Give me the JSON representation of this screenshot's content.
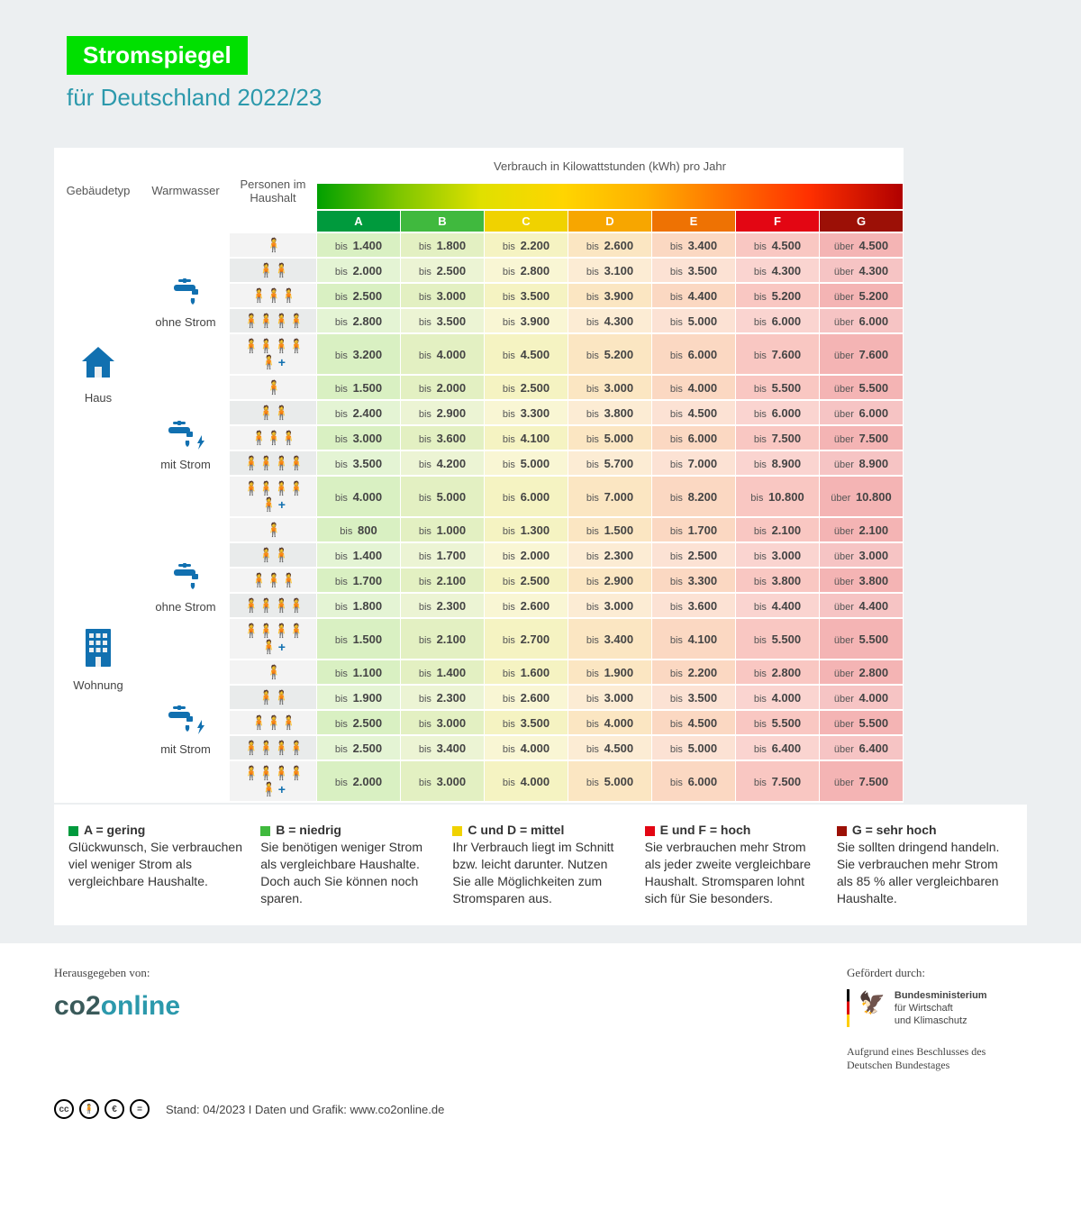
{
  "title": "Stromspiegel",
  "subtitle": "für Deutschland 2022/23",
  "tableHeader": {
    "gebaeude": "Gebäudetyp",
    "warmwasser": "Warmwasser",
    "personen": "Personen im Haushalt",
    "verbrauch": "Verbrauch in Kilowattstunden (kWh) pro Jahr"
  },
  "categories": [
    "A",
    "B",
    "C",
    "D",
    "E",
    "F",
    "G"
  ],
  "catColors": [
    "#009a3d",
    "#40b93e",
    "#f0d200",
    "#f7a600",
    "#ee7203",
    "#e30613",
    "#9c1006"
  ],
  "prefixes": {
    "bis": "bis",
    "ueber": "über"
  },
  "buildings": [
    {
      "type": "Haus",
      "groups": [
        {
          "ww": "ohne Strom",
          "icon": "faucet",
          "rows": [
            {
              "p": 1,
              "v": [
                "1.400",
                "1.800",
                "2.200",
                "2.600",
                "3.400",
                "4.500",
                "4.500"
              ]
            },
            {
              "p": 2,
              "v": [
                "2.000",
                "2.500",
                "2.800",
                "3.100",
                "3.500",
                "4.300",
                "4.300"
              ]
            },
            {
              "p": 3,
              "v": [
                "2.500",
                "3.000",
                "3.500",
                "3.900",
                "4.400",
                "5.200",
                "5.200"
              ]
            },
            {
              "p": 4,
              "v": [
                "2.800",
                "3.500",
                "3.900",
                "4.300",
                "5.000",
                "6.000",
                "6.000"
              ]
            },
            {
              "p": 5,
              "v": [
                "3.200",
                "4.000",
                "4.500",
                "5.200",
                "6.000",
                "7.600",
                "7.600"
              ]
            }
          ]
        },
        {
          "ww": "mit Strom",
          "icon": "faucet-bolt",
          "rows": [
            {
              "p": 1,
              "v": [
                "1.500",
                "2.000",
                "2.500",
                "3.000",
                "4.000",
                "5.500",
                "5.500"
              ]
            },
            {
              "p": 2,
              "v": [
                "2.400",
                "2.900",
                "3.300",
                "3.800",
                "4.500",
                "6.000",
                "6.000"
              ]
            },
            {
              "p": 3,
              "v": [
                "3.000",
                "3.600",
                "4.100",
                "5.000",
                "6.000",
                "7.500",
                "7.500"
              ]
            },
            {
              "p": 4,
              "v": [
                "3.500",
                "4.200",
                "5.000",
                "5.700",
                "7.000",
                "8.900",
                "8.900"
              ]
            },
            {
              "p": 5,
              "v": [
                "4.000",
                "5.000",
                "6.000",
                "7.000",
                "8.200",
                "10.800",
                "10.800"
              ]
            }
          ]
        }
      ]
    },
    {
      "type": "Wohnung",
      "groups": [
        {
          "ww": "ohne Strom",
          "icon": "faucet",
          "rows": [
            {
              "p": 1,
              "v": [
                "800",
                "1.000",
                "1.300",
                "1.500",
                "1.700",
                "2.100",
                "2.100"
              ]
            },
            {
              "p": 2,
              "v": [
                "1.400",
                "1.700",
                "2.000",
                "2.300",
                "2.500",
                "3.000",
                "3.000"
              ]
            },
            {
              "p": 3,
              "v": [
                "1.700",
                "2.100",
                "2.500",
                "2.900",
                "3.300",
                "3.800",
                "3.800"
              ]
            },
            {
              "p": 4,
              "v": [
                "1.800",
                "2.300",
                "2.600",
                "3.000",
                "3.600",
                "4.400",
                "4.400"
              ]
            },
            {
              "p": 5,
              "v": [
                "1.500",
                "2.100",
                "2.700",
                "3.400",
                "4.100",
                "5.500",
                "5.500"
              ]
            }
          ]
        },
        {
          "ww": "mit Strom",
          "icon": "faucet-bolt",
          "rows": [
            {
              "p": 1,
              "v": [
                "1.100",
                "1.400",
                "1.600",
                "1.900",
                "2.200",
                "2.800",
                "2.800"
              ]
            },
            {
              "p": 2,
              "v": [
                "1.900",
                "2.300",
                "2.600",
                "3.000",
                "3.500",
                "4.000",
                "4.000"
              ]
            },
            {
              "p": 3,
              "v": [
                "2.500",
                "3.000",
                "3.500",
                "4.000",
                "4.500",
                "5.500",
                "5.500"
              ]
            },
            {
              "p": 4,
              "v": [
                "2.500",
                "3.400",
                "4.000",
                "4.500",
                "5.000",
                "6.400",
                "6.400"
              ]
            },
            {
              "p": 5,
              "v": [
                "2.000",
                "3.000",
                "4.000",
                "5.000",
                "6.000",
                "7.500",
                "7.500"
              ]
            }
          ]
        }
      ]
    }
  ],
  "legend": [
    {
      "sq": "#009a3d",
      "t": "A = gering",
      "d": "Glückwunsch, Sie ver­brauchen viel weniger Strom als vergleichbare Haushalte."
    },
    {
      "sq": "#40b93e",
      "t": "B = niedrig",
      "d": "Sie benötigen weniger Strom als vergleichbare Haushalte. Doch auch Sie können noch sparen."
    },
    {
      "sq": "#f0d200",
      "t": "C und D = mittel",
      "d": "Ihr Verbrauch liegt im Schnitt bzw. leicht darunter. Nutzen Sie alle Möglichkeiten zum Stromsparen aus."
    },
    {
      "sq": "#e30613",
      "t": "E und F = hoch",
      "d": "Sie verbrauchen mehr Strom als jeder zweite vergleichbare Haushalt. Stromsparen lohnt sich für Sie besonders."
    },
    {
      "sq": "#9c1006",
      "t": "G = sehr hoch",
      "d": "Sie sollten dringend handeln. Sie verbrau­chen mehr Strom als 85 % aller vergleich­baren Haushalte."
    }
  ],
  "footer": {
    "pubBy": "Herausgegeben von:",
    "sponsBy": "Gefördert durch:",
    "ministry1": "Bundesministerium",
    "ministry2": "für Wirtschaft",
    "ministry3": "und Klimaschutz",
    "basis": "Aufgrund eines Beschlusses des Deutschen Bundestages",
    "stand": "Stand: 04/2023  I  Daten und Grafik: www.co2online.de"
  }
}
